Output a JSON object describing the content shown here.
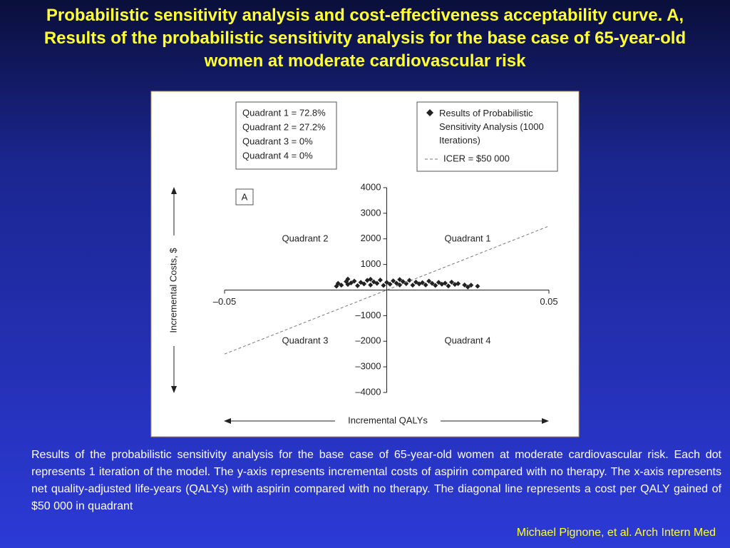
{
  "slide": {
    "title": "Probabilistic sensitivity analysis and cost-effectiveness acceptability curve. A, Results of the probabilistic sensitivity analysis for the base case of 65-year-old women at moderate cardiovascular risk",
    "caption": "Results of the probabilistic sensitivity analysis for the base case of 65-year-old women at moderate cardiovascular risk. Each dot represents 1 iteration of the model. The y-axis represents incremental costs of aspirin compared with no therapy. The x-axis represents net quality-adjusted life-years (QALYs) with aspirin compared with no therapy. The diagonal line represents a cost per QALY gained of $50 000 in quadrant",
    "citation": "Michael Pignone, et al. Arch Intern Med"
  },
  "chart_data": {
    "type": "scatter",
    "panel_label": "A",
    "x_label": "Incremental QALYs",
    "y_label": "Incremental Costs, $",
    "quadrant_summary": [
      "Quadrant 1 = 72.8%",
      "Quadrant 2 = 27.2%",
      "Quadrant 3 = 0%",
      "Quadrant 4 = 0%"
    ],
    "quadrant_labels": [
      "Quadrant 2",
      "Quadrant 1",
      "Quadrant 3",
      "Quadrant 4"
    ],
    "xlim": [
      -0.05,
      0.05
    ],
    "ylim": [
      -4000,
      4000
    ],
    "xticks": [
      {
        "value": -0.05,
        "label": "–0.05"
      },
      0.05
    ],
    "yticks": [
      4000,
      3000,
      2000,
      1000,
      {
        "value": -1000,
        "label": "–1000"
      },
      {
        "value": -2000,
        "label": "–2000"
      },
      {
        "value": -3000,
        "label": "–3000"
      },
      {
        "value": -4000,
        "label": "–4000"
      }
    ],
    "series": [
      {
        "name": "Results of Probabilistic Sensitivity Analysis (1000 Iterations)",
        "color": "#222222",
        "x": [
          -0.0155,
          -0.015,
          -0.014,
          -0.0125,
          -0.012,
          -0.011,
          -0.01,
          -0.009,
          -0.008,
          -0.007,
          -0.006,
          -0.005,
          -0.004,
          -0.003,
          -0.002,
          -0.001,
          0,
          0.001,
          0.002,
          0.003,
          0.004,
          0.005,
          0.006,
          0.007,
          0.008,
          0.009,
          0.01,
          0.011,
          0.012,
          0.013,
          0.014,
          0.015,
          0.016,
          0.017,
          0.018,
          0.019,
          0.02,
          0.021,
          0.022,
          0.024,
          0.025,
          0.026,
          0.028,
          -0.012,
          -0.005,
          0.004
        ],
        "values": [
          150,
          260,
          190,
          330,
          220,
          280,
          350,
          170,
          300,
          240,
          380,
          200,
          320,
          260,
          390,
          180,
          300,
          230,
          360,
          270,
          200,
          330,
          250,
          380,
          190,
          310,
          240,
          290,
          200,
          350,
          260,
          180,
          300,
          230,
          270,
          160,
          310,
          220,
          250,
          200,
          120,
          190,
          150,
          430,
          420,
          410
        ]
      },
      {
        "name": "ICER = $50 000",
        "color": "#777777",
        "x": [
          -0.05,
          0.05
        ],
        "values": [
          -2500,
          2500
        ]
      }
    ]
  }
}
